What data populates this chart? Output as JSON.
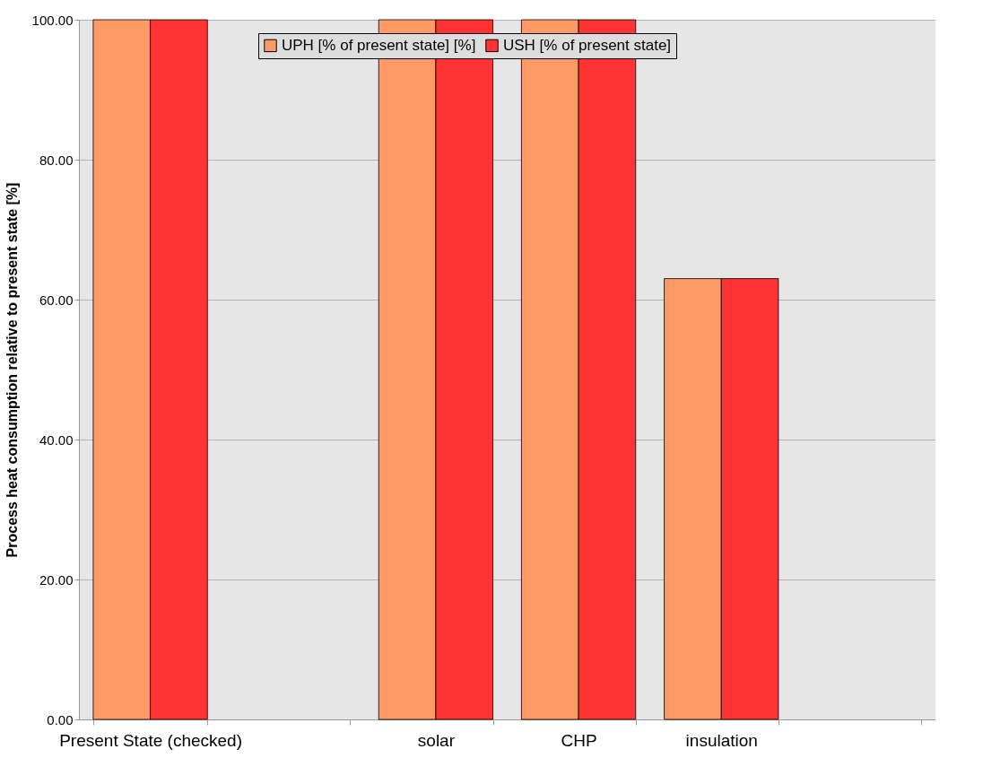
{
  "chart_data": {
    "type": "bar",
    "ylabel": "Process heat consumption relative to present state [%]",
    "categories": [
      "Present State (checked)",
      null,
      "solar",
      "CHP",
      "insulation",
      null
    ],
    "series": [
      {
        "name": "UPH [% of present state] [%]",
        "color": "#ff9966",
        "values": [
          100,
          null,
          100,
          100,
          63,
          null
        ]
      },
      {
        "name": "USH [% of present state]",
        "color": "#ff3333",
        "values": [
          100,
          null,
          100,
          100,
          63,
          null
        ]
      }
    ],
    "ylim": [
      0,
      100
    ],
    "yticks": [
      {
        "value": 0,
        "label": "0.00"
      },
      {
        "value": 20,
        "label": "20.00"
      },
      {
        "value": 40,
        "label": "40.00"
      },
      {
        "value": 60,
        "label": "60.00"
      },
      {
        "value": 80,
        "label": "80.00"
      },
      {
        "value": 100,
        "label": "100.00"
      }
    ],
    "grid": "y",
    "legend": "top"
  }
}
